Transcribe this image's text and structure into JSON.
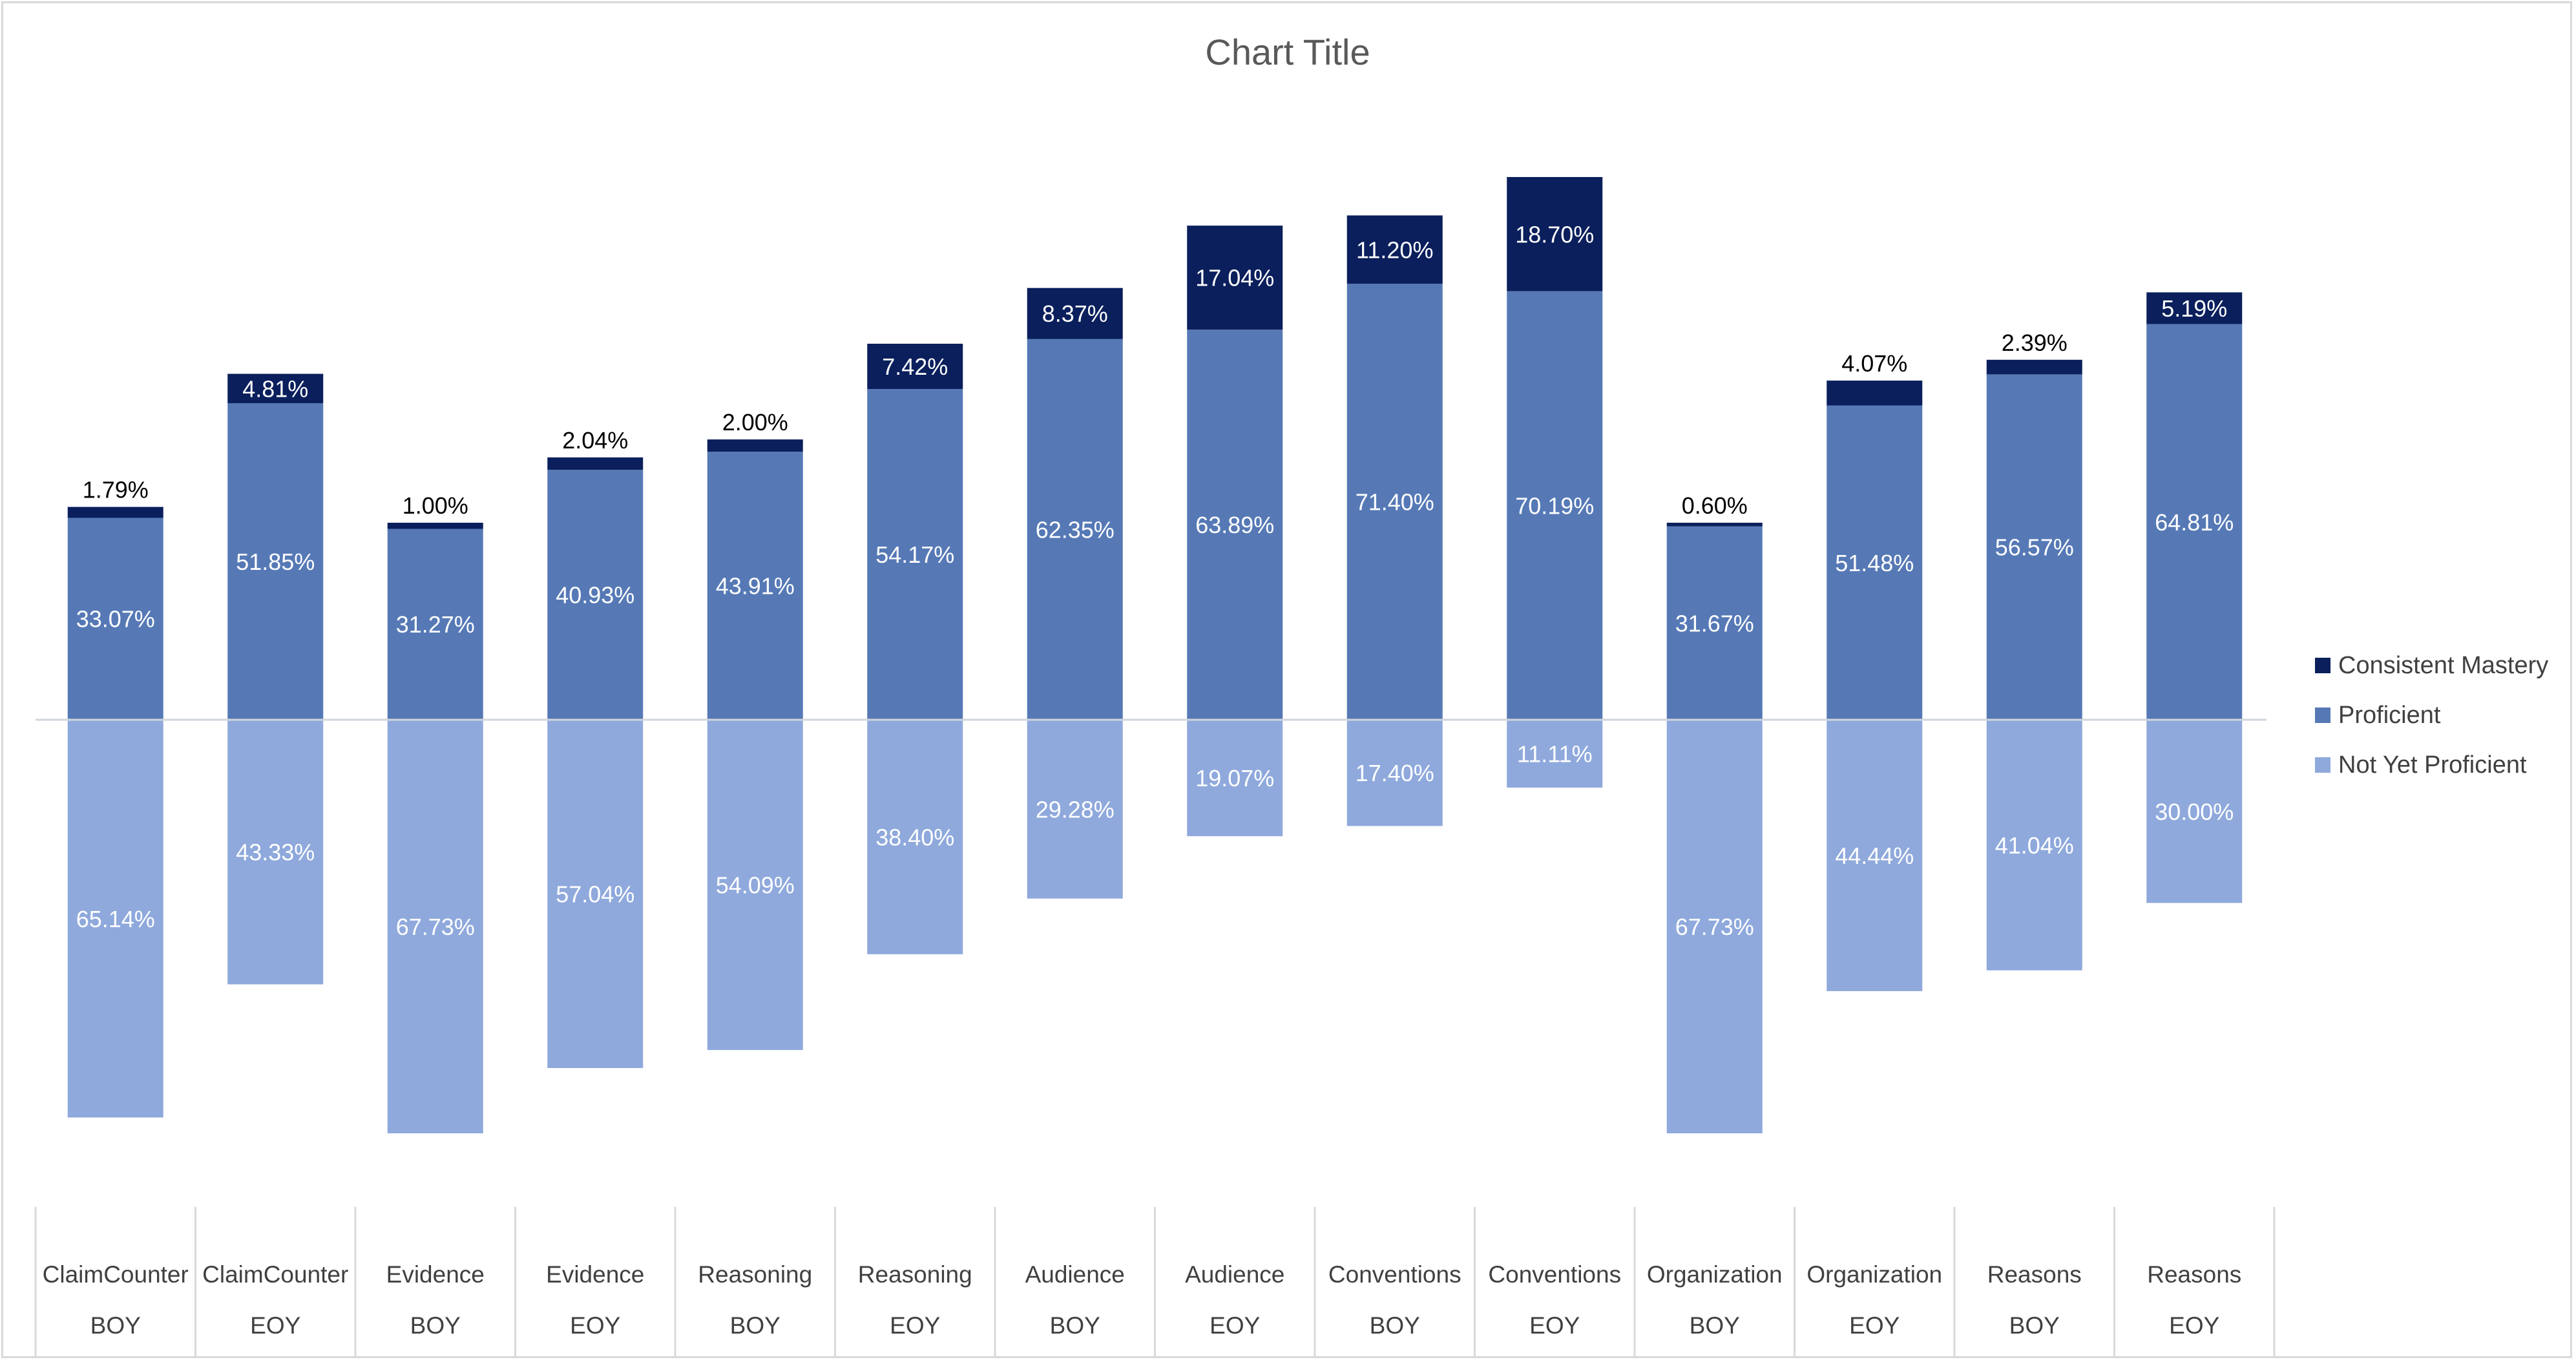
{
  "chart_data": {
    "type": "bar",
    "subtype": "diverging-stacked",
    "title": "Chart Title",
    "xlabel": "",
    "ylabel": "",
    "categories": [
      [
        "ClaimCounter",
        "BOY"
      ],
      [
        "ClaimCounter",
        "EOY"
      ],
      [
        "Evidence",
        "BOY"
      ],
      [
        "Evidence",
        "EOY"
      ],
      [
        "Reasoning",
        "BOY"
      ],
      [
        "Reasoning",
        "EOY"
      ],
      [
        "Audience",
        "BOY"
      ],
      [
        "Audience",
        "EOY"
      ],
      [
        "Conventions",
        "BOY"
      ],
      [
        "Conventions",
        "EOY"
      ],
      [
        "Organization",
        "BOY"
      ],
      [
        "Organization",
        "EOY"
      ],
      [
        "Reasons",
        "BOY"
      ],
      [
        "Reasons",
        "EOY"
      ]
    ],
    "series": [
      {
        "name": "Consistent Mastery",
        "color": "#0a1f5c",
        "values": [
          1.79,
          4.81,
          1.0,
          2.04,
          2.0,
          7.42,
          8.37,
          17.04,
          11.2,
          18.7,
          0.6,
          4.07,
          2.39,
          5.19
        ],
        "labels": [
          "1.79%",
          "4.81%",
          "1.00%",
          "2.04%",
          "2.00%",
          "7.42%",
          "8.37%",
          "17.04%",
          "11.20%",
          "18.70%",
          "0.60%",
          "4.07%",
          "2.39%",
          "5.19%"
        ]
      },
      {
        "name": "Proficient",
        "color": "#5679b6",
        "values": [
          33.07,
          51.85,
          31.27,
          40.93,
          43.91,
          54.17,
          62.35,
          63.89,
          71.4,
          70.19,
          31.67,
          51.48,
          56.57,
          64.81
        ],
        "labels": [
          "33.07%",
          "51.85%",
          "31.27%",
          "40.93%",
          "43.91%",
          "54.17%",
          "62.35%",
          "63.89%",
          "71.40%",
          "70.19%",
          "31.67%",
          "51.48%",
          "56.57%",
          "64.81%"
        ]
      },
      {
        "name": "Not Yet Proficient",
        "color": "#8fa9dc",
        "direction": "negative",
        "values": [
          65.14,
          43.33,
          67.73,
          57.04,
          54.09,
          38.4,
          29.28,
          19.07,
          17.4,
          11.11,
          67.73,
          44.44,
          41.04,
          30.0
        ],
        "labels": [
          "65.14%",
          "43.33%",
          "67.73%",
          "57.04%",
          "54.09%",
          "38.40%",
          "29.28%",
          "19.07%",
          "17.40%",
          "11.11%",
          "67.73%",
          "44.44%",
          "41.04%",
          "30.00%"
        ]
      }
    ],
    "legend": {
      "placement": "right",
      "items": [
        "Consistent Mastery",
        "Proficient",
        "Not Yet Proficient"
      ]
    },
    "grid": false
  }
}
